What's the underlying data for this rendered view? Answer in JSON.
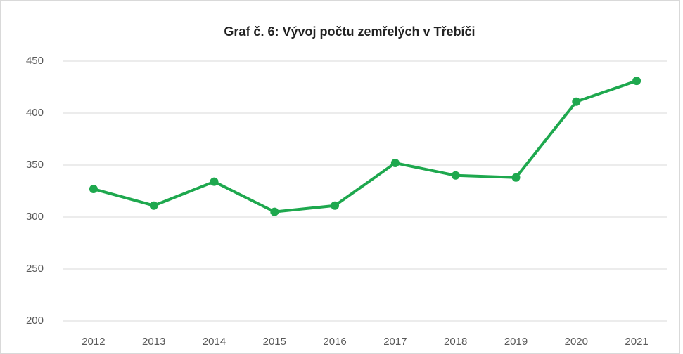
{
  "chart_data": {
    "type": "line",
    "title": "Graf č. 6: Vývoj počtu zemřelých v Třebíči",
    "categories": [
      "2012",
      "2013",
      "2014",
      "2015",
      "2016",
      "2017",
      "2018",
      "2019",
      "2020",
      "2021"
    ],
    "values": [
      327,
      311,
      334,
      305,
      311,
      352,
      340,
      338,
      411,
      431
    ],
    "color": "#1ea84e",
    "ylim": [
      200,
      450
    ],
    "yticks": [
      200,
      250,
      300,
      350,
      400,
      450
    ],
    "grid": true
  }
}
